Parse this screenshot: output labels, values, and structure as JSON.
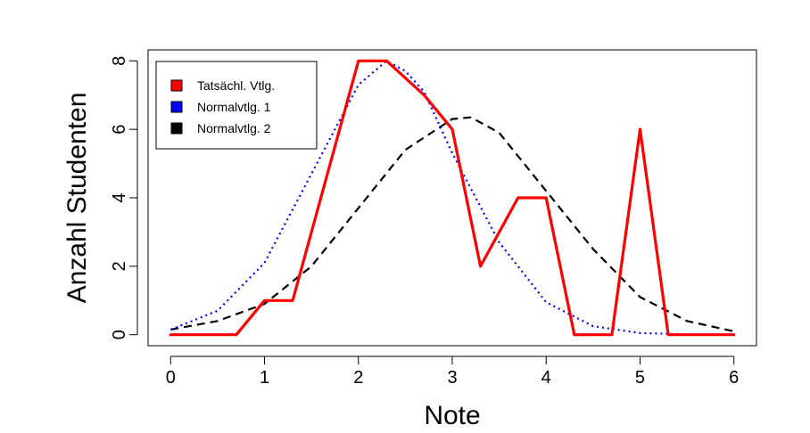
{
  "chart_data": {
    "type": "line",
    "title": "",
    "xlabel": "Note",
    "ylabel": "Anzahl Studenten",
    "xlim": [
      -0.24,
      6.24
    ],
    "ylim": [
      -0.32,
      8.32
    ],
    "x_ticks": [
      "0",
      "1",
      "2",
      "3",
      "4",
      "5",
      "6"
    ],
    "y_ticks": [
      "0",
      "2",
      "4",
      "6",
      "8"
    ],
    "grid": false,
    "legend": {
      "position": "top-left",
      "entries": [
        {
          "label": "Tatsächl. Vtlg.",
          "color": "#ff0000"
        },
        {
          "label": "Normalvtlg. 1",
          "color": "#0000ff"
        },
        {
          "label": "Normalvtlg. 2",
          "color": "#000000"
        }
      ]
    },
    "series": [
      {
        "name": "Tatsächl. Vtlg.",
        "color": "#ff0000",
        "style": "solid",
        "x": [
          0,
          0.7,
          1.0,
          1.3,
          2.0,
          2.3,
          2.7,
          3.0,
          3.3,
          3.7,
          4.0,
          4.3,
          4.7,
          5.0,
          5.3,
          6.0
        ],
        "y": [
          0,
          0,
          1,
          1,
          8,
          8,
          7,
          6,
          2,
          4,
          4,
          0,
          0,
          6,
          0,
          0
        ]
      },
      {
        "name": "Normalvtlg. 1",
        "color": "#0000ff",
        "style": "dotted",
        "x": [
          0,
          0.5,
          1.0,
          1.5,
          2.0,
          2.3,
          2.5,
          2.7,
          3.0,
          3.5,
          4.0,
          4.5,
          5.0,
          5.5,
          6.0
        ],
        "y": [
          0.15,
          0.7,
          2.1,
          4.7,
          7.3,
          8.0,
          7.7,
          7.1,
          5.3,
          2.7,
          0.95,
          0.25,
          0.05,
          0.01,
          0.0
        ]
      },
      {
        "name": "Normalvtlg. 2",
        "color": "#000000",
        "style": "dashed",
        "x": [
          0,
          0.5,
          1.0,
          1.5,
          2.0,
          2.5,
          3.0,
          3.2,
          3.5,
          4.0,
          4.5,
          5.0,
          5.5,
          6.0
        ],
        "y": [
          0.15,
          0.4,
          0.9,
          2.0,
          3.7,
          5.4,
          6.3,
          6.35,
          5.9,
          4.2,
          2.5,
          1.1,
          0.4,
          0.1
        ]
      }
    ]
  }
}
